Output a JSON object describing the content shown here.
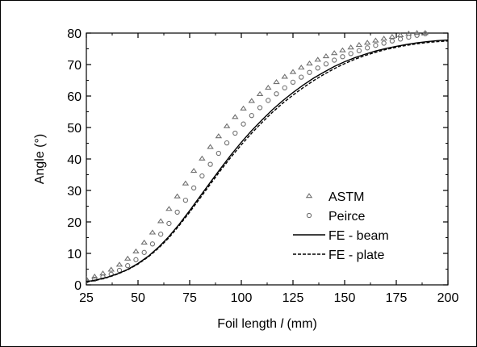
{
  "chart_data": {
    "type": "scatter",
    "title": "",
    "xlabel": "Foil length l (mm)",
    "xlabel_parts": {
      "before": "Foil length ",
      "italic": "l",
      "after": " (mm)"
    },
    "ylabel": "Angle (°)",
    "xlim": [
      25,
      200
    ],
    "ylim": [
      0,
      80
    ],
    "xticks": [
      25,
      50,
      75,
      100,
      125,
      150,
      175,
      200
    ],
    "yticks": [
      0,
      10,
      20,
      30,
      40,
      50,
      60,
      70,
      80
    ],
    "grid": false,
    "legend_position": "lower-right",
    "series": [
      {
        "name": "ASTM",
        "marker": "triangle-open",
        "color": "#707070",
        "x": [
          25,
          29,
          33,
          37,
          41,
          45,
          49,
          53,
          57,
          61,
          65,
          69,
          73,
          77,
          81,
          85,
          89,
          93,
          97,
          101,
          105,
          109,
          113,
          117,
          121,
          125,
          129,
          133,
          137,
          141,
          145,
          149,
          153,
          157,
          161,
          165,
          169,
          173,
          177,
          181,
          185,
          189
        ],
        "values": [
          1.8,
          2.6,
          3.6,
          4.8,
          6.4,
          8.3,
          10.6,
          13.4,
          16.6,
          20.2,
          24.1,
          28.1,
          32.2,
          36.2,
          40.1,
          43.8,
          47.2,
          50.4,
          53.3,
          56.0,
          58.4,
          60.6,
          62.6,
          64.4,
          66.1,
          67.6,
          69.0,
          70.3,
          71.5,
          72.6,
          73.6,
          74.5,
          75.4,
          76.2,
          76.9,
          77.6,
          78.2,
          78.8,
          79.3,
          79.8,
          80.0,
          80.0
        ]
      },
      {
        "name": "Peirce",
        "marker": "circle-open",
        "color": "#707070",
        "x": [
          25,
          29,
          33,
          37,
          41,
          45,
          49,
          53,
          57,
          61,
          65,
          69,
          73,
          77,
          81,
          85,
          89,
          93,
          97,
          101,
          105,
          109,
          113,
          117,
          121,
          125,
          129,
          133,
          137,
          141,
          145,
          149,
          153,
          157,
          161,
          165,
          169,
          173,
          177,
          181,
          185,
          189
        ],
        "values": [
          1.2,
          1.8,
          2.5,
          3.4,
          4.6,
          6.1,
          8.0,
          10.3,
          13.0,
          16.1,
          19.5,
          23.1,
          26.9,
          30.8,
          34.6,
          38.3,
          41.8,
          45.1,
          48.2,
          51.1,
          53.8,
          56.3,
          58.6,
          60.7,
          62.6,
          64.4,
          66.0,
          67.5,
          68.9,
          70.2,
          71.4,
          72.5,
          73.5,
          74.4,
          75.3,
          76.1,
          76.8,
          77.5,
          78.1,
          78.7,
          79.3,
          79.8
        ]
      },
      {
        "name": "FE - beam",
        "line": "solid",
        "color": "#000000",
        "x": [
          25,
          30,
          35,
          40,
          45,
          50,
          55,
          60,
          65,
          70,
          75,
          80,
          85,
          90,
          95,
          100,
          105,
          110,
          115,
          120,
          125,
          130,
          135,
          140,
          145,
          150,
          155,
          160,
          165,
          170,
          175,
          180,
          185,
          190,
          195,
          200
        ],
        "values": [
          1.0,
          1.6,
          2.4,
          3.5,
          4.9,
          6.8,
          9.1,
          12.0,
          15.4,
          19.3,
          23.6,
          28.1,
          32.6,
          37.0,
          41.3,
          45.3,
          49.0,
          52.4,
          55.6,
          58.5,
          61.1,
          63.5,
          65.7,
          67.6,
          69.4,
          70.9,
          72.2,
          73.3,
          74.3,
          75.1,
          75.8,
          76.4,
          76.9,
          77.3,
          77.6,
          77.8
        ]
      },
      {
        "name": "FE - plate",
        "line": "dashed",
        "color": "#000000",
        "x": [
          25,
          30,
          35,
          40,
          45,
          50,
          55,
          60,
          65,
          70,
          75,
          80,
          85,
          90,
          95,
          100,
          105,
          110,
          115,
          120,
          125,
          130,
          135,
          140,
          145,
          150,
          155,
          160,
          165,
          170,
          175,
          180,
          185,
          190,
          195,
          200
        ],
        "values": [
          0.9,
          1.5,
          2.3,
          3.4,
          4.8,
          6.6,
          8.9,
          11.7,
          15.0,
          18.9,
          23.1,
          27.5,
          32.0,
          36.4,
          40.6,
          44.5,
          48.2,
          51.6,
          54.8,
          57.7,
          60.3,
          62.7,
          64.9,
          66.9,
          68.7,
          70.3,
          71.7,
          72.9,
          73.9,
          74.8,
          75.5,
          76.1,
          76.6,
          77.0,
          77.3,
          77.5
        ]
      }
    ]
  }
}
